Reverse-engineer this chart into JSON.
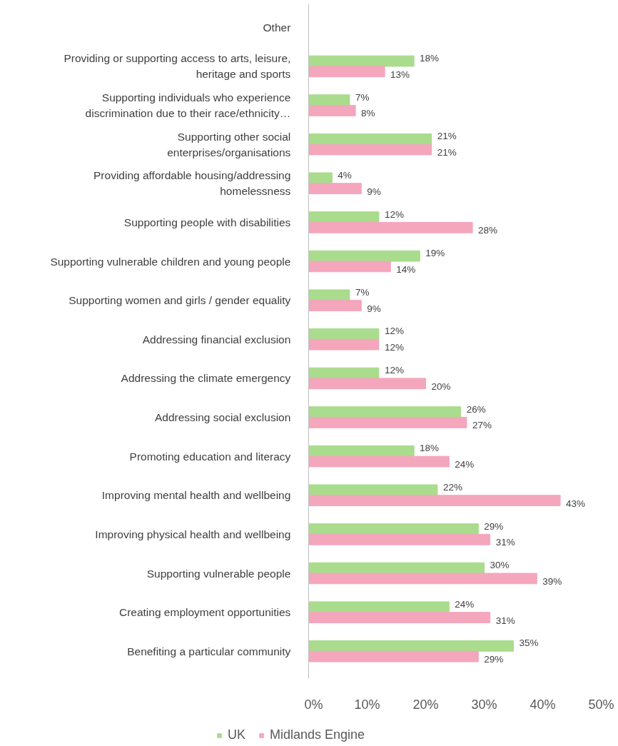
{
  "chart_data": {
    "type": "bar",
    "orientation": "horizontal",
    "categories": [
      "Other",
      "Providing or supporting access to arts, leisure, heritage and sports",
      "Supporting individuals who experience discrimination due to their race/ethnicity…",
      "Supporting other social enterprises/organisations",
      "Providing affordable housing/addressing homelessness",
      "Supporting people with disabilities",
      "Supporting vulnerable children and young people",
      "Supporting women and girls / gender equality",
      "Addressing financial exclusion",
      "Addressing the climate emergency",
      "Addressing social exclusion",
      "Promoting education and literacy",
      "Improving mental health and wellbeing",
      "Improving physical health and wellbeing",
      "Supporting vulnerable people",
      "Creating employment opportunities",
      "Benefiting a particular community"
    ],
    "series": [
      {
        "name": "UK",
        "color": "#a9dc8c",
        "values": [
          null,
          18,
          7,
          21,
          4,
          12,
          19,
          7,
          12,
          12,
          26,
          18,
          22,
          29,
          30,
          24,
          35
        ],
        "value_labels": [
          null,
          "18%",
          "7%",
          "21%",
          "4%",
          "12%",
          "19%",
          "7%",
          "12%",
          "12%",
          "26%",
          "18%",
          "22%",
          "29%",
          "30%",
          "24%",
          "35%"
        ]
      },
      {
        "name": "Midlands Engine",
        "color": "#f4a6bc",
        "values": [
          null,
          13,
          8,
          21,
          9,
          28,
          14,
          9,
          12,
          20,
          27,
          24,
          43,
          31,
          39,
          31,
          29
        ],
        "value_labels": [
          null,
          "13%",
          "8%",
          "21%",
          "9%",
          "28%",
          "14%",
          "9%",
          "12%",
          "20%",
          "27%",
          "24%",
          "43%",
          "31%",
          "39%",
          "31%",
          "29%"
        ]
      }
    ],
    "xlim": [
      0,
      50
    ],
    "xticks": [
      {
        "value": 0,
        "label": "0%"
      },
      {
        "value": 10,
        "label": "10%"
      },
      {
        "value": 20,
        "label": "20%"
      },
      {
        "value": 30,
        "label": "30%"
      },
      {
        "value": 40,
        "label": "40%"
      },
      {
        "value": 50,
        "label": "50%"
      }
    ],
    "grid": false,
    "legend": "bottom"
  }
}
